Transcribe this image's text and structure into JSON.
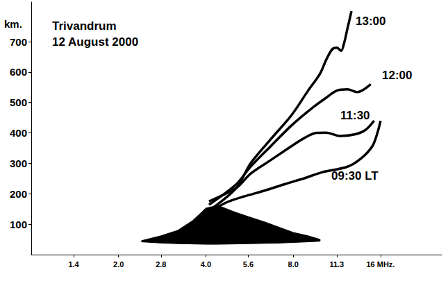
{
  "chart_data": {
    "type": "line",
    "title": "Trivandrum",
    "subtitle": "12 August 2000",
    "ylabel": "km.",
    "log": "x",
    "grid": false,
    "line_style": "solid",
    "marker": "none",
    "xlim": [
      1,
      26
    ],
    "xticks": [
      1.4,
      {
        "value": 2,
        "label": "2.0"
      },
      2.8,
      {
        "value": 4,
        "label": "4.0"
      },
      5.6,
      {
        "value": 8,
        "label": "8.0"
      },
      11.3,
      {
        "value": 16,
        "label": "16 MHz."
      }
    ],
    "ylim": [
      0,
      830
    ],
    "yticks": [
      100,
      200,
      300,
      400,
      500,
      600,
      700
    ],
    "series": [
      {
        "name": "09:30 LT",
        "color": "#000000",
        "x": [
          4.3,
          4.8,
          5.4,
          6.4,
          7.5,
          8.8,
          10.0,
          12.3,
          13.7,
          15.0,
          15.6,
          16.0
        ],
        "values": [
          152,
          175,
          191,
          211,
          232,
          252,
          270,
          289,
          316,
          357,
          400,
          440
        ]
      },
      {
        "name": "11:30",
        "color": "#000000",
        "x": [
          4.1,
          5.1,
          5.7,
          6.7,
          7.9,
          8.8,
          9.6,
          10.4,
          11.6,
          13.0,
          14.2,
          15.2
        ],
        "values": [
          175,
          220,
          266,
          311,
          357,
          385,
          400,
          401,
          390,
          395,
          410,
          440
        ]
      },
      {
        "name": "12:00",
        "color": "#000000",
        "x": [
          4.1,
          5.1,
          5.7,
          6.7,
          7.9,
          9.3,
          10.4,
          11.3,
          12.3,
          13.3,
          14.8
        ],
        "values": [
          164,
          232,
          289,
          357,
          425,
          482,
          516,
          539,
          543,
          534,
          560
        ]
      },
      {
        "name": "13:00",
        "color": "#000000",
        "x": [
          4.2,
          5.1,
          5.7,
          6.7,
          7.9,
          9.0,
          9.9,
          10.4,
          10.9,
          11.3,
          11.7,
          12.0,
          12.3,
          12.7
        ],
        "values": [
          152,
          220,
          300,
          380,
          459,
          539,
          595,
          641,
          675,
          680,
          670,
          698,
          743,
          800
        ]
      }
    ],
    "band": {
      "color": "#000000",
      "x": [
        2.4,
        2.8,
        3.2,
        3.6,
        4.0,
        4.4,
        5.0,
        5.6,
        6.4,
        7.2,
        8.0,
        9.0,
        9.9
      ],
      "upper": [
        46,
        62,
        80,
        112,
        153,
        162,
        141,
        125,
        107,
        89,
        73,
        62,
        50
      ],
      "lower": [
        42,
        38,
        36,
        35,
        34,
        34,
        35,
        36,
        37,
        38,
        40,
        42,
        44
      ]
    }
  }
}
